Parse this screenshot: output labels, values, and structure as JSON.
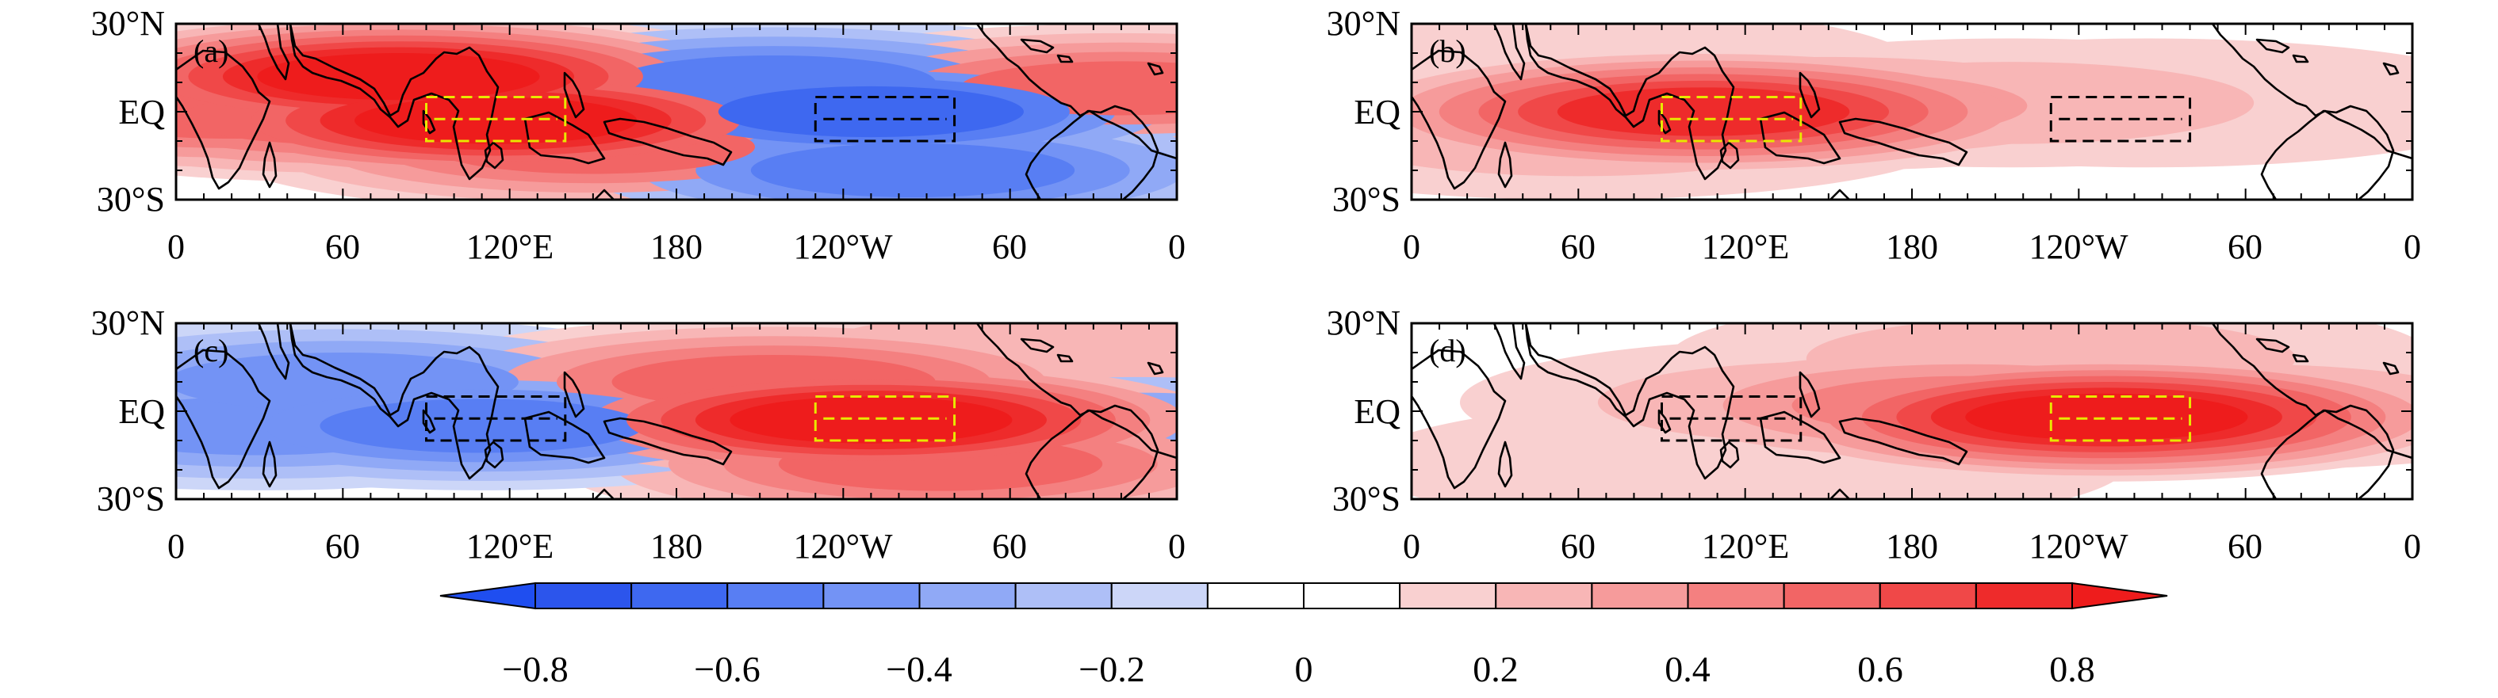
{
  "figure": {
    "lat_labels": [
      "30°N",
      "EQ",
      "30°S"
    ],
    "lon_labels": [
      "0",
      "60",
      "120°E",
      "180",
      "120°W",
      "60",
      "0"
    ],
    "panels": [
      {
        "label": "(a)",
        "pattern": "indian-ocean-warm-pacific-cold",
        "highlight_box": "west"
      },
      {
        "label": "(b)",
        "pattern": "indo-pacific-warm-pool",
        "highlight_box": "west"
      },
      {
        "label": "(c)",
        "pattern": "east-pacific-warm-west-cold",
        "highlight_box": "east"
      },
      {
        "label": "(d)",
        "pattern": "east-pacific-warm-tongue",
        "highlight_box": "east"
      }
    ]
  },
  "colorbar": {
    "tick_labels": [
      "−0.8",
      "−0.6",
      "−0.4",
      "−0.2",
      "0",
      "0.2",
      "0.4",
      "0.6",
      "0.8"
    ],
    "colors": [
      "#2c55ec",
      "#3e68f0",
      "#587ef3",
      "#7393f5",
      "#90a9f6",
      "#aebff7",
      "#ccd6f8",
      "#ffffff",
      "#ffffff",
      "#f9d0d0",
      "#f8b6b6",
      "#f69b9b",
      "#f48080",
      "#f26565",
      "#f04848",
      "#ee2b2b"
    ],
    "low_end_color": "#1f4ef0",
    "high_end_color": "#ee1c1c"
  },
  "chart_data": {
    "type": "heatmap",
    "title": "",
    "xlabel": "",
    "ylabel": "",
    "x_range_deg_east": [
      0,
      360
    ],
    "y_range_deg_north": [
      -30,
      30
    ],
    "x_ticks_deg_east": [
      0,
      60,
      120,
      180,
      240,
      300,
      360
    ],
    "y_ticks_deg_north": [
      30,
      0,
      -30
    ],
    "levels": [
      -0.8,
      -0.7,
      -0.6,
      -0.5,
      -0.4,
      -0.3,
      -0.2,
      -0.1,
      0,
      0.1,
      0.2,
      0.3,
      0.4,
      0.5,
      0.6,
      0.7,
      0.8
    ],
    "boxes": {
      "west": {
        "lon": [
          90,
          140
        ],
        "lat": [
          -10,
          5
        ]
      },
      "east": {
        "lon": [
          230,
          280
        ],
        "lat": [
          -10,
          5
        ]
      }
    },
    "panels": [
      {
        "label": "(a)",
        "centers": [
          {
            "lon": 80,
            "lat": 12,
            "value": 0.8
          },
          {
            "lon": 115,
            "lat": -3,
            "value": 0.85
          },
          {
            "lon": 60,
            "lat": -2,
            "value": 0.6
          },
          {
            "lon": 20,
            "lat": 0,
            "value": 0.5
          },
          {
            "lon": 150,
            "lat": -12,
            "value": 0.5
          },
          {
            "lon": 250,
            "lat": 0,
            "value": -0.7
          },
          {
            "lon": 215,
            "lat": 10,
            "value": -0.5
          },
          {
            "lon": 265,
            "lat": -20,
            "value": -0.6
          },
          {
            "lon": 340,
            "lat": 8,
            "value": 0.5
          },
          {
            "lon": 310,
            "lat": -15,
            "value": 0.25
          }
        ]
      },
      {
        "label": "(b)",
        "centers": [
          {
            "lon": 105,
            "lat": 0,
            "value": 0.75
          },
          {
            "lon": 150,
            "lat": 2,
            "value": 0.35
          },
          {
            "lon": 215,
            "lat": 3,
            "value": 0.25
          },
          {
            "lon": 265,
            "lat": 3,
            "value": 0.15
          },
          {
            "lon": 60,
            "lat": -8,
            "value": 0.25
          },
          {
            "lon": 45,
            "lat": 15,
            "value": 0.12
          }
        ]
      },
      {
        "label": "(c)",
        "centers": [
          {
            "lon": 110,
            "lat": -5,
            "value": -0.6
          },
          {
            "lon": 60,
            "lat": 10,
            "value": -0.45
          },
          {
            "lon": 30,
            "lat": -5,
            "value": -0.4
          },
          {
            "lon": 155,
            "lat": 5,
            "value": -0.35
          },
          {
            "lon": 250,
            "lat": -3,
            "value": 0.85
          },
          {
            "lon": 215,
            "lat": 10,
            "value": 0.55
          },
          {
            "lon": 275,
            "lat": -18,
            "value": 0.5
          },
          {
            "lon": 345,
            "lat": -5,
            "value": -0.35
          },
          {
            "lon": 315,
            "lat": 20,
            "value": 0.25
          }
        ]
      },
      {
        "label": "(d)",
        "centers": [
          {
            "lon": 250,
            "lat": -2,
            "value": 0.85
          },
          {
            "lon": 200,
            "lat": 2,
            "value": 0.45
          },
          {
            "lon": 155,
            "lat": 3,
            "value": 0.25
          },
          {
            "lon": 300,
            "lat": 2,
            "value": 0.2
          },
          {
            "lon": 230,
            "lat": 18,
            "value": 0.3
          },
          {
            "lon": 120,
            "lat": -18,
            "value": 0.15
          }
        ]
      }
    ]
  }
}
